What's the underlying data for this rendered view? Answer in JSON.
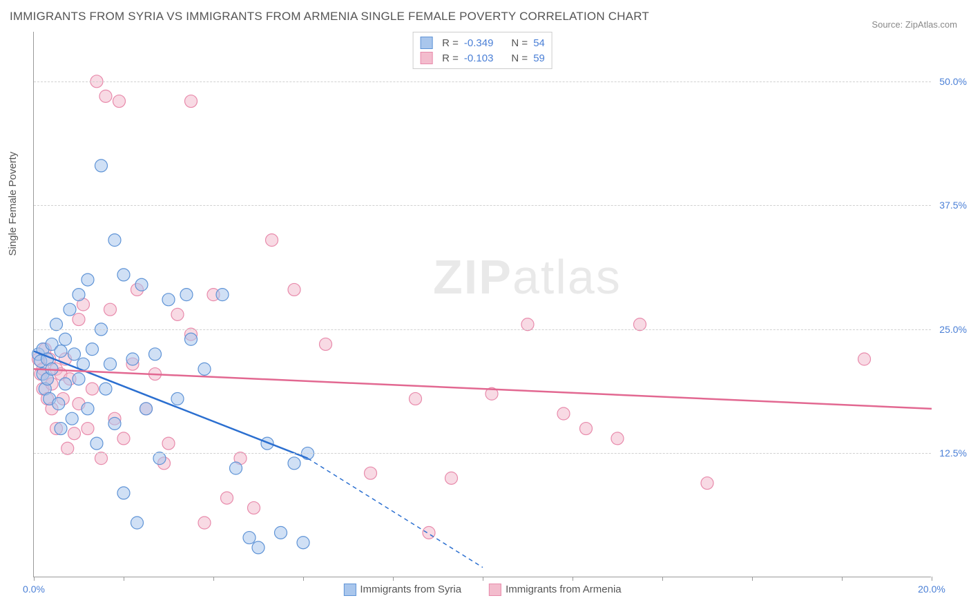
{
  "title": "IMMIGRANTS FROM SYRIA VS IMMIGRANTS FROM ARMENIA SINGLE FEMALE POVERTY CORRELATION CHART",
  "source_label": "Source:",
  "source_value": "ZipAtlas.com",
  "ylabel": "Single Female Poverty",
  "watermark_bold": "ZIP",
  "watermark_light": "atlas",
  "chart": {
    "type": "scatter-with-regression",
    "background_color": "#ffffff",
    "grid_color": "#d0d0d0",
    "axis_color": "#999999",
    "tick_label_color": "#4a7fd6",
    "text_color": "#555555",
    "xlim": [
      0,
      20
    ],
    "ylim": [
      0,
      55
    ],
    "y_gridlines": [
      12.5,
      25.0,
      37.5,
      50.0
    ],
    "ytick_labels": [
      "12.5%",
      "25.0%",
      "37.5%",
      "50.0%"
    ],
    "xtick_positions": [
      0,
      2,
      4,
      6,
      8,
      10,
      12,
      14,
      16,
      18,
      20
    ],
    "xtick_labels_shown": {
      "0": "0.0%",
      "20": "20.0%"
    },
    "marker_radius": 9,
    "marker_opacity": 0.55,
    "line_width": 2.5,
    "series": [
      {
        "name": "Immigrants from Syria",
        "color_fill": "#a9c6ec",
        "color_stroke": "#5e93d6",
        "line_color": "#2b6fd0",
        "R": "-0.349",
        "N": "54",
        "regression": {
          "x1": 0,
          "y1": 22.8,
          "x2_solid": 6.1,
          "y2_solid": 12.0,
          "x2_dash": 10.0,
          "y2_dash": 1.0
        },
        "points": [
          [
            0.1,
            22.5
          ],
          [
            0.15,
            21.8
          ],
          [
            0.2,
            20.5
          ],
          [
            0.2,
            23.0
          ],
          [
            0.25,
            19.0
          ],
          [
            0.3,
            22.0
          ],
          [
            0.3,
            20.0
          ],
          [
            0.35,
            18.0
          ],
          [
            0.4,
            23.5
          ],
          [
            0.4,
            21.0
          ],
          [
            0.5,
            25.5
          ],
          [
            0.55,
            17.5
          ],
          [
            0.6,
            22.8
          ],
          [
            0.6,
            15.0
          ],
          [
            0.7,
            24.0
          ],
          [
            0.7,
            19.5
          ],
          [
            0.8,
            27.0
          ],
          [
            0.85,
            16.0
          ],
          [
            0.9,
            22.5
          ],
          [
            1.0,
            28.5
          ],
          [
            1.0,
            20.0
          ],
          [
            1.1,
            21.5
          ],
          [
            1.2,
            30.0
          ],
          [
            1.2,
            17.0
          ],
          [
            1.3,
            23.0
          ],
          [
            1.4,
            13.5
          ],
          [
            1.5,
            41.5
          ],
          [
            1.5,
            25.0
          ],
          [
            1.6,
            19.0
          ],
          [
            1.7,
            21.5
          ],
          [
            1.8,
            34.0
          ],
          [
            1.8,
            15.5
          ],
          [
            2.0,
            30.5
          ],
          [
            2.0,
            8.5
          ],
          [
            2.2,
            22.0
          ],
          [
            2.3,
            5.5
          ],
          [
            2.4,
            29.5
          ],
          [
            2.5,
            17.0
          ],
          [
            2.7,
            22.5
          ],
          [
            2.8,
            12.0
          ],
          [
            3.0,
            28.0
          ],
          [
            3.2,
            18.0
          ],
          [
            3.4,
            28.5
          ],
          [
            3.5,
            24.0
          ],
          [
            3.8,
            21.0
          ],
          [
            4.2,
            28.5
          ],
          [
            4.5,
            11.0
          ],
          [
            4.8,
            4.0
          ],
          [
            5.0,
            3.0
          ],
          [
            5.2,
            13.5
          ],
          [
            5.5,
            4.5
          ],
          [
            5.8,
            11.5
          ],
          [
            6.0,
            3.5
          ],
          [
            6.1,
            12.5
          ]
        ]
      },
      {
        "name": "Immigrants from Armenia",
        "color_fill": "#f3bccd",
        "color_stroke": "#e88aab",
        "line_color": "#e26891",
        "R": "-0.103",
        "N": "59",
        "regression": {
          "x1": 0,
          "y1": 21.0,
          "x2_solid": 20.0,
          "y2_solid": 17.0,
          "x2_dash": 20.0,
          "y2_dash": 17.0
        },
        "points": [
          [
            0.1,
            22.0
          ],
          [
            0.15,
            20.5
          ],
          [
            0.2,
            21.0
          ],
          [
            0.2,
            19.0
          ],
          [
            0.25,
            23.0
          ],
          [
            0.3,
            18.0
          ],
          [
            0.3,
            20.0
          ],
          [
            0.35,
            22.0
          ],
          [
            0.4,
            19.5
          ],
          [
            0.4,
            17.0
          ],
          [
            0.5,
            21.0
          ],
          [
            0.5,
            15.0
          ],
          [
            0.6,
            20.5
          ],
          [
            0.65,
            18.0
          ],
          [
            0.7,
            22.0
          ],
          [
            0.75,
            13.0
          ],
          [
            0.8,
            20.0
          ],
          [
            0.9,
            14.5
          ],
          [
            1.0,
            26.0
          ],
          [
            1.0,
            17.5
          ],
          [
            1.1,
            27.5
          ],
          [
            1.2,
            15.0
          ],
          [
            1.3,
            19.0
          ],
          [
            1.4,
            50.0
          ],
          [
            1.5,
            12.0
          ],
          [
            1.6,
            48.5
          ],
          [
            1.7,
            27.0
          ],
          [
            1.8,
            16.0
          ],
          [
            1.9,
            48.0
          ],
          [
            2.0,
            14.0
          ],
          [
            2.2,
            21.5
          ],
          [
            2.3,
            29.0
          ],
          [
            2.5,
            17.0
          ],
          [
            2.7,
            20.5
          ],
          [
            2.9,
            11.5
          ],
          [
            3.0,
            13.5
          ],
          [
            3.2,
            26.5
          ],
          [
            3.5,
            48.0
          ],
          [
            3.5,
            24.5
          ],
          [
            3.8,
            5.5
          ],
          [
            4.0,
            28.5
          ],
          [
            4.3,
            8.0
          ],
          [
            4.6,
            12.0
          ],
          [
            4.9,
            7.0
          ],
          [
            5.3,
            34.0
          ],
          [
            5.8,
            29.0
          ],
          [
            6.5,
            23.5
          ],
          [
            7.5,
            10.5
          ],
          [
            8.5,
            18.0
          ],
          [
            8.8,
            4.5
          ],
          [
            9.3,
            10.0
          ],
          [
            10.2,
            18.5
          ],
          [
            11.0,
            25.5
          ],
          [
            11.8,
            16.5
          ],
          [
            12.3,
            15.0
          ],
          [
            13.0,
            14.0
          ],
          [
            13.5,
            25.5
          ],
          [
            15.0,
            9.5
          ],
          [
            18.5,
            22.0
          ]
        ]
      }
    ]
  },
  "bottom_legend": [
    {
      "swatch_fill": "#a9c6ec",
      "swatch_stroke": "#5e93d6",
      "label": "Immigrants from Syria"
    },
    {
      "swatch_fill": "#f3bccd",
      "swatch_stroke": "#e88aab",
      "label": "Immigrants from Armenia"
    }
  ]
}
